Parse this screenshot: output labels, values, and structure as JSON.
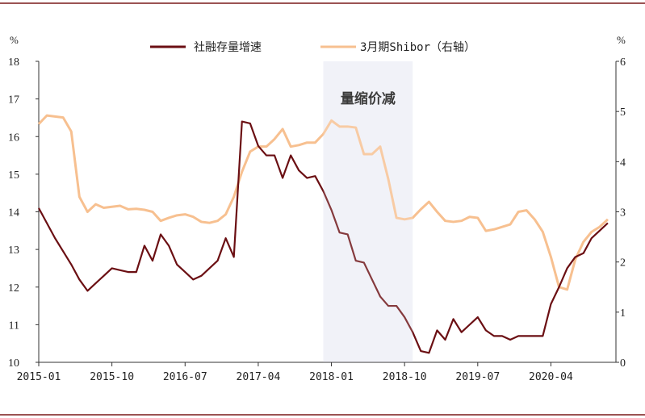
{
  "chart_data": {
    "type": "line",
    "title": "",
    "left_unit": "%",
    "right_unit": "%",
    "left_ylim": [
      10,
      18
    ],
    "left_yticks": [
      10,
      11,
      12,
      13,
      14,
      15,
      16,
      17,
      18
    ],
    "right_ylim": [
      0,
      6
    ],
    "right_yticks": [
      0,
      1,
      2,
      3,
      4,
      5,
      6
    ],
    "x_range": [
      "2015-01",
      "2020-12"
    ],
    "x_ticks": [
      "2015-01",
      "2015-10",
      "2016-07",
      "2017-04",
      "2018-01",
      "2018-10",
      "2019-07",
      "2020-04"
    ],
    "colors": {
      "series1": "#6b0f13",
      "series2": "#f7c090",
      "shade": "#eef0f7",
      "border": "#7a1a1a"
    },
    "annotation": {
      "text": "量缩价减",
      "from": "2017-12",
      "to": "2018-11"
    },
    "series": [
      {
        "name": "社融存量增速",
        "axis": "left",
        "points": [
          [
            "2015-01",
            14.1
          ],
          [
            "2015-02",
            13.7
          ],
          [
            "2015-03",
            13.3
          ],
          [
            "2015-04",
            12.95
          ],
          [
            "2015-05",
            12.6
          ],
          [
            "2015-06",
            12.2
          ],
          [
            "2015-07",
            11.9
          ],
          [
            "2015-08",
            12.1
          ],
          [
            "2015-09",
            12.3
          ],
          [
            "2015-10",
            12.5
          ],
          [
            "2015-11",
            12.45
          ],
          [
            "2015-12",
            12.4
          ],
          [
            "2016-01",
            12.4
          ],
          [
            "2016-02",
            13.1
          ],
          [
            "2016-03",
            12.7
          ],
          [
            "2016-04",
            13.4
          ],
          [
            "2016-05",
            13.1
          ],
          [
            "2016-06",
            12.6
          ],
          [
            "2016-07",
            12.4
          ],
          [
            "2016-08",
            12.2
          ],
          [
            "2016-09",
            12.3
          ],
          [
            "2016-10",
            12.5
          ],
          [
            "2016-11",
            12.7
          ],
          [
            "2016-12",
            13.3
          ],
          [
            "2017-01",
            12.8
          ],
          [
            "2017-02",
            16.4
          ],
          [
            "2017-03",
            16.35
          ],
          [
            "2017-04",
            15.75
          ],
          [
            "2017-05",
            15.5
          ],
          [
            "2017-06",
            15.5
          ],
          [
            "2017-07",
            14.9
          ],
          [
            "2017-08",
            15.5
          ],
          [
            "2017-09",
            15.1
          ],
          [
            "2017-10",
            14.9
          ],
          [
            "2017-11",
            14.95
          ],
          [
            "2017-12",
            14.55
          ],
          [
            "2018-01",
            14.05
          ],
          [
            "2018-02",
            13.45
          ],
          [
            "2018-03",
            13.4
          ],
          [
            "2018-04",
            12.7
          ],
          [
            "2018-05",
            12.65
          ],
          [
            "2018-06",
            12.2
          ],
          [
            "2018-07",
            11.75
          ],
          [
            "2018-08",
            11.5
          ],
          [
            "2018-09",
            11.5
          ],
          [
            "2018-10",
            11.2
          ],
          [
            "2018-11",
            10.8
          ],
          [
            "2018-12",
            10.3
          ],
          [
            "2019-01",
            10.25
          ],
          [
            "2019-02",
            10.85
          ],
          [
            "2019-03",
            10.6
          ],
          [
            "2019-04",
            11.15
          ],
          [
            "2019-05",
            10.8
          ],
          [
            "2019-06",
            11.0
          ],
          [
            "2019-07",
            11.2
          ],
          [
            "2019-08",
            10.85
          ],
          [
            "2019-09",
            10.7
          ],
          [
            "2019-10",
            10.7
          ],
          [
            "2019-11",
            10.6
          ],
          [
            "2019-12",
            10.7
          ],
          [
            "2020-01",
            10.7
          ],
          [
            "2020-02",
            10.7
          ],
          [
            "2020-03",
            10.7
          ],
          [
            "2020-04",
            11.55
          ],
          [
            "2020-05",
            12.0
          ],
          [
            "2020-06",
            12.5
          ],
          [
            "2020-07",
            12.8
          ],
          [
            "2020-08",
            12.9
          ],
          [
            "2020-09",
            13.3
          ],
          [
            "2020-10",
            13.5
          ],
          [
            "2020-11",
            13.7
          ]
        ]
      },
      {
        "name": "3月期Shibor（右轴）",
        "axis": "right",
        "points": [
          [
            "2015-01",
            4.75
          ],
          [
            "2015-02",
            4.92
          ],
          [
            "2015-03",
            4.9
          ],
          [
            "2015-04",
            4.88
          ],
          [
            "2015-05",
            4.6
          ],
          [
            "2015-06",
            3.3
          ],
          [
            "2015-07",
            3.0
          ],
          [
            "2015-08",
            3.15
          ],
          [
            "2015-09",
            3.08
          ],
          [
            "2015-10",
            3.1
          ],
          [
            "2015-11",
            3.12
          ],
          [
            "2015-12",
            3.05
          ],
          [
            "2016-01",
            3.06
          ],
          [
            "2016-02",
            3.04
          ],
          [
            "2016-03",
            3.0
          ],
          [
            "2016-04",
            2.82
          ],
          [
            "2016-05",
            2.88
          ],
          [
            "2016-06",
            2.93
          ],
          [
            "2016-07",
            2.95
          ],
          [
            "2016-08",
            2.9
          ],
          [
            "2016-09",
            2.8
          ],
          [
            "2016-10",
            2.78
          ],
          [
            "2016-11",
            2.82
          ],
          [
            "2016-12",
            2.95
          ],
          [
            "2017-01",
            3.3
          ],
          [
            "2017-02",
            3.8
          ],
          [
            "2017-03",
            4.2
          ],
          [
            "2017-04",
            4.3
          ],
          [
            "2017-05",
            4.3
          ],
          [
            "2017-06",
            4.45
          ],
          [
            "2017-07",
            4.65
          ],
          [
            "2017-08",
            4.3
          ],
          [
            "2017-09",
            4.33
          ],
          [
            "2017-10",
            4.38
          ],
          [
            "2017-11",
            4.38
          ],
          [
            "2017-12",
            4.55
          ],
          [
            "2018-01",
            4.82
          ],
          [
            "2018-02",
            4.7
          ],
          [
            "2018-03",
            4.7
          ],
          [
            "2018-04",
            4.68
          ],
          [
            "2018-05",
            4.15
          ],
          [
            "2018-06",
            4.15
          ],
          [
            "2018-07",
            4.3
          ],
          [
            "2018-08",
            3.65
          ],
          [
            "2018-09",
            2.88
          ],
          [
            "2018-10",
            2.85
          ],
          [
            "2018-11",
            2.88
          ],
          [
            "2018-12",
            3.05
          ],
          [
            "2019-01",
            3.2
          ],
          [
            "2019-02",
            3.0
          ],
          [
            "2019-03",
            2.82
          ],
          [
            "2019-04",
            2.8
          ],
          [
            "2019-05",
            2.82
          ],
          [
            "2019-06",
            2.9
          ],
          [
            "2019-07",
            2.88
          ],
          [
            "2019-08",
            2.62
          ],
          [
            "2019-09",
            2.65
          ],
          [
            "2019-10",
            2.7
          ],
          [
            "2019-11",
            2.75
          ],
          [
            "2019-12",
            3.0
          ],
          [
            "2020-01",
            3.03
          ],
          [
            "2020-02",
            2.85
          ],
          [
            "2020-03",
            2.6
          ],
          [
            "2020-04",
            2.1
          ],
          [
            "2020-05",
            1.5
          ],
          [
            "2020-06",
            1.45
          ],
          [
            "2020-07",
            2.05
          ],
          [
            "2020-08",
            2.4
          ],
          [
            "2020-09",
            2.6
          ],
          [
            "2020-10",
            2.7
          ],
          [
            "2020-11",
            2.85
          ]
        ]
      }
    ]
  }
}
